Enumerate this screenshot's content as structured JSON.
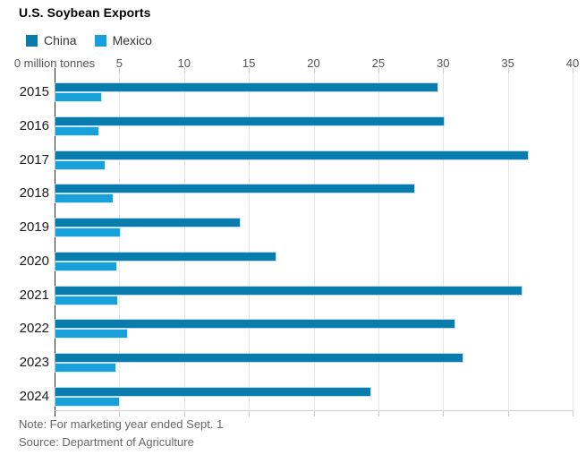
{
  "title": "U.S. Soybean Exports",
  "legend": {
    "items": [
      {
        "label": "China",
        "color": "#087cac"
      },
      {
        "label": "Mexico",
        "color": "#18a0da"
      }
    ]
  },
  "axis": {
    "zero_label": "0 million tonnes",
    "ticks": [
      0,
      5,
      10,
      15,
      20,
      25,
      30,
      35,
      40
    ],
    "max": 40
  },
  "note": "Note: For marketing year ended Sept. 1",
  "source": "Source: Department of Agriculture",
  "chart_data": {
    "type": "bar",
    "orientation": "horizontal",
    "title": "U.S. Soybean Exports",
    "xlabel": "million tonnes",
    "xlim": [
      0,
      40
    ],
    "grid": true,
    "legend_position": "top-left",
    "categories": [
      "2015",
      "2016",
      "2017",
      "2018",
      "2019",
      "2020",
      "2021",
      "2022",
      "2023",
      "2024"
    ],
    "series": [
      {
        "name": "China",
        "color": "#087cac",
        "values": [
          29.5,
          30.0,
          36.5,
          27.7,
          14.2,
          17.0,
          36.0,
          30.8,
          31.4,
          24.3
        ]
      },
      {
        "name": "Mexico",
        "color": "#18a0da",
        "values": [
          3.5,
          3.3,
          3.8,
          4.4,
          5.0,
          4.7,
          4.8,
          5.5,
          4.6,
          4.9
        ]
      }
    ]
  }
}
